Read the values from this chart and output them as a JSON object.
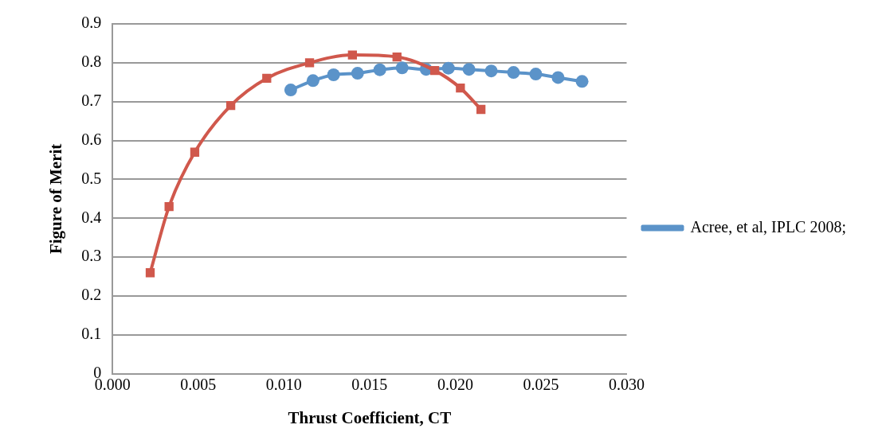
{
  "chart_data": {
    "type": "line",
    "xlabel": "Thrust Coefficient, CT",
    "ylabel": "Figure of Merit",
    "xlim": [
      0,
      0.03
    ],
    "xticks": [
      {
        "value": 0,
        "label": "0.000"
      },
      {
        "value": 0.005,
        "label": "0.005"
      },
      {
        "value": 0.01,
        "label": "0.010"
      },
      {
        "value": 0.015,
        "label": "0.015"
      },
      {
        "value": 0.02,
        "label": "0.020"
      },
      {
        "value": 0.025,
        "label": "0.025"
      },
      {
        "value": 0.03,
        "label": "0.030"
      }
    ],
    "ylim": [
      0,
      0.9
    ],
    "yticks": [
      0,
      0.1,
      0.2,
      0.3,
      0.4,
      0.5,
      0.6,
      0.7,
      0.8,
      0.9
    ],
    "grid": "y",
    "legend": "right",
    "series": [
      {
        "color": "#d0584c",
        "marker": "square",
        "x": [
          0.0022,
          0.0033,
          0.0048,
          0.0069,
          0.009,
          0.0115,
          0.014,
          0.0166,
          0.0188,
          0.0203,
          0.0215
        ],
        "values": [
          0.26,
          0.43,
          0.57,
          0.69,
          0.76,
          0.8,
          0.82,
          0.815,
          0.78,
          0.735,
          0.68
        ]
      },
      {
        "name": "Acree, et al, IPLC 2008;",
        "color": "#5b93c9",
        "marker": "circle",
        "x": [
          0.0104,
          0.0117,
          0.0129,
          0.0143,
          0.0156,
          0.0169,
          0.0183,
          0.0196,
          0.0208,
          0.0221,
          0.0234,
          0.0247,
          0.026,
          0.0274
        ],
        "values": [
          0.73,
          0.754,
          0.769,
          0.773,
          0.782,
          0.787,
          0.783,
          0.786,
          0.783,
          0.779,
          0.775,
          0.771,
          0.762,
          0.752
        ]
      }
    ]
  }
}
